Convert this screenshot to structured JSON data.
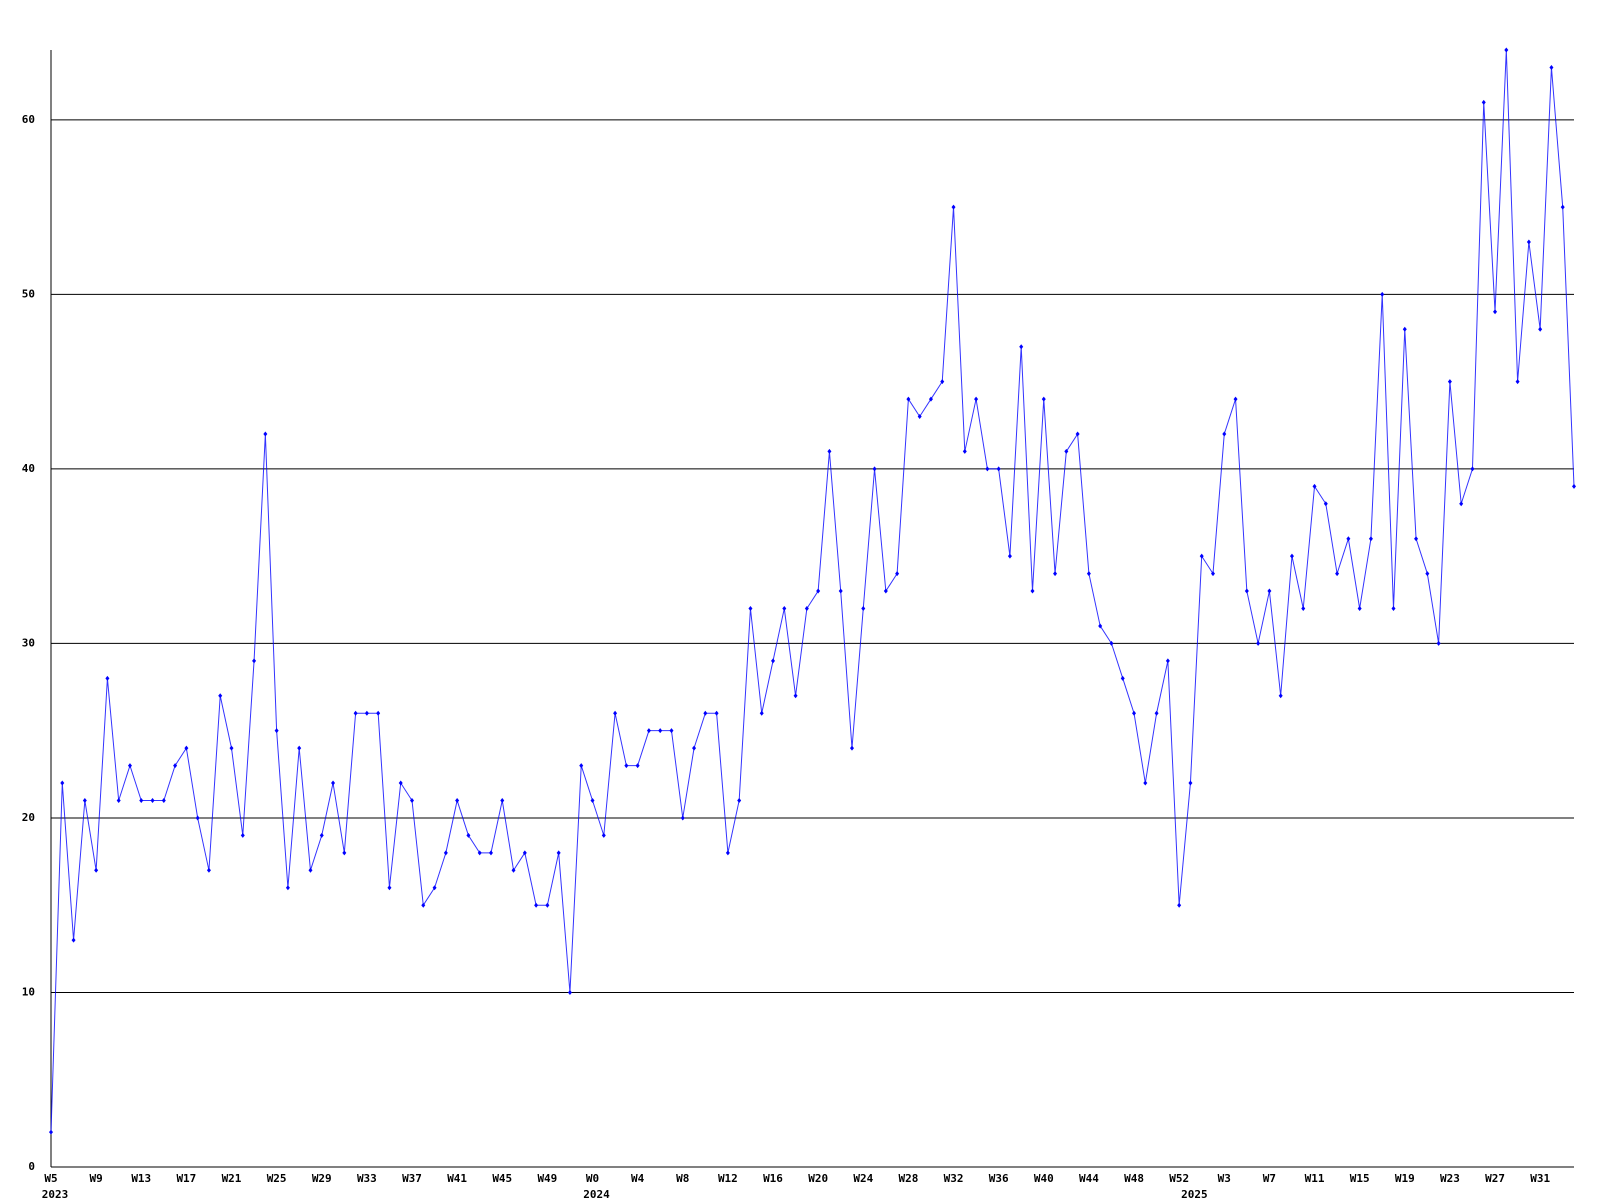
{
  "chart_data": {
    "type": "line",
    "color": "#0000ff",
    "categories": [
      "W5",
      null,
      null,
      null,
      "W9",
      null,
      null,
      null,
      "W13",
      null,
      null,
      null,
      "W17",
      null,
      null,
      null,
      "W21",
      null,
      null,
      null,
      "W25",
      null,
      null,
      null,
      "W29",
      null,
      null,
      null,
      "W33",
      null,
      null,
      null,
      "W37",
      null,
      null,
      null,
      "W41",
      null,
      null,
      null,
      "W45",
      null,
      null,
      null,
      "W49",
      null,
      null,
      null,
      "W0",
      null,
      null,
      null,
      "W4",
      null,
      null,
      null,
      "W8",
      null,
      null,
      null,
      "W12",
      null,
      null,
      null,
      "W16",
      null,
      null,
      null,
      "W20",
      null,
      null,
      null,
      "W24",
      null,
      null,
      null,
      "W28",
      null,
      null,
      null,
      "W32",
      null,
      null,
      null,
      "W36",
      null,
      null,
      null,
      "W40",
      null,
      null,
      null,
      "W44",
      null,
      null,
      null,
      "W48",
      null,
      null,
      null,
      "W52",
      null,
      null,
      null,
      "W3",
      null,
      null,
      null,
      "W7",
      null,
      null,
      null,
      "W11",
      null,
      null,
      null,
      "W15",
      null,
      null,
      null,
      "W19",
      null,
      null,
      null,
      "W23",
      null,
      null,
      null,
      "W27",
      null,
      null,
      null,
      "W31",
      null,
      null,
      null
    ],
    "years": [
      "2023",
      null,
      null,
      null,
      null,
      null,
      null,
      null,
      null,
      null,
      null,
      null,
      null,
      null,
      null,
      null,
      null,
      null,
      null,
      null,
      null,
      null,
      null,
      null,
      null,
      null,
      null,
      null,
      null,
      null,
      null,
      null,
      null,
      null,
      null,
      null,
      null,
      null,
      null,
      null,
      null,
      null,
      null,
      null,
      null,
      null,
      null,
      null,
      "2024",
      null,
      null,
      null,
      null,
      null,
      null,
      null,
      null,
      null,
      null,
      null,
      null,
      null,
      null,
      null,
      null,
      null,
      null,
      null,
      null,
      null,
      null,
      null,
      null,
      null,
      null,
      null,
      null,
      null,
      null,
      null,
      null,
      null,
      null,
      null,
      null,
      null,
      null,
      null,
      null,
      null,
      null,
      null,
      null,
      null,
      null,
      null,
      null,
      null,
      null,
      null,
      null,
      "2025",
      null,
      null,
      null,
      null,
      null,
      null,
      null,
      null,
      null,
      null,
      null,
      null,
      null,
      null,
      null,
      null,
      null,
      null,
      null,
      null,
      null,
      null,
      null,
      null,
      null,
      null,
      null,
      null,
      null,
      null,
      null,
      null,
      null,
      null
    ],
    "values": [
      2,
      22,
      13,
      21,
      17,
      28,
      21,
      23,
      21,
      21,
      21,
      23,
      24,
      20,
      17,
      27,
      24,
      19,
      29,
      42,
      25,
      16,
      24,
      17,
      19,
      22,
      18,
      26,
      26,
      26,
      16,
      22,
      21,
      15,
      16,
      18,
      21,
      19,
      18,
      18,
      21,
      17,
      18,
      15,
      15,
      18,
      10,
      23,
      21,
      19,
      26,
      23,
      23,
      25,
      25,
      25,
      20,
      24,
      26,
      26,
      18,
      21,
      32,
      26,
      29,
      32,
      27,
      32,
      33,
      41,
      33,
      24,
      32,
      40,
      33,
      34,
      44,
      43,
      44,
      45,
      55,
      41,
      44,
      40,
      40,
      35,
      47,
      33,
      44,
      34,
      41,
      42,
      34,
      31,
      30,
      28,
      26,
      22,
      26,
      29,
      15,
      22,
      35,
      34,
      42,
      44,
      33,
      30,
      33,
      27,
      35,
      32,
      39,
      38,
      34,
      36,
      32,
      36,
      50,
      32,
      48,
      36,
      34,
      30,
      45,
      38,
      40,
      61,
      49,
      64,
      45,
      53,
      48,
      63,
      55,
      39
    ],
    "ylim": [
      0,
      64
    ],
    "yticks": [
      0,
      10,
      20,
      30,
      40,
      50,
      60
    ],
    "grid": true
  }
}
